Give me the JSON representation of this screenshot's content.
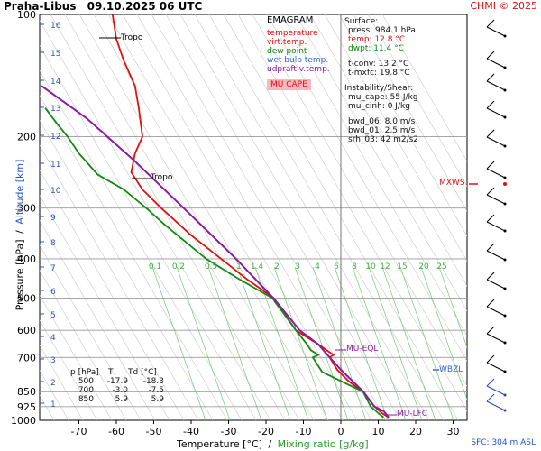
{
  "header": {
    "station": "Praha-Libus",
    "datetime": "09.10.2025 06 UTC",
    "copyright": "CHMI © 2025"
  },
  "legend": {
    "title": "EMAGRAM",
    "items": [
      {
        "label": "temperature",
        "color": "#e01010"
      },
      {
        "label": "virt.temp.",
        "color": "#e01010"
      },
      {
        "label": "dew point",
        "color": "#118811"
      },
      {
        "label": "wet bulb temp.",
        "color": "#3366dd"
      },
      {
        "label": "udpraft v.temp.",
        "color": "#8a1aa0"
      }
    ],
    "mucape_badge": "MU CAPE",
    "mucape_bg": "#f6b8c0"
  },
  "info": {
    "surface_title": "Surface:",
    "press": "press: 984.1 hPa",
    "temp": "temp: 12.8 °C",
    "dwpt": "dwpt: 11.4 °C",
    "tconv": "t-conv: 13.2 °C",
    "tmxfc": "t-mxfc: 19.8 °C",
    "instab_title": "Instability/Shear:",
    "mu_cape": "mu_cape: 55 J/kg",
    "mu_cinh": "mu_cinh: 0 J/kg",
    "bwd_06": "bwd_06: 8.0 m/s",
    "bwd_01": "bwd_01: 2.5 m/s",
    "srh_03": "srh_03: 42 m2/s2"
  },
  "table": {
    "headers": [
      "p [hPa]",
      "T",
      "Td [°C]"
    ],
    "rows": [
      [
        "500",
        "-17.9",
        "-18.3"
      ],
      [
        "700",
        "-3.0",
        "-7.5"
      ],
      [
        "850",
        "5.9",
        "5.9"
      ]
    ]
  },
  "annotations": {
    "tropo_upper": "Tropo",
    "tropo_lower": "Tropo",
    "mu_eql": "MU-EQL",
    "mu_lfc": "MU-LFC",
    "mxws": "MXWS",
    "wbzl": "WBZL",
    "sfc": "SFC: 304 m ASL"
  },
  "axes": {
    "xlabel_temp": "Temperature [°C]",
    "xlabel_sep": "/",
    "xlabel_mix": "Mixing ratio [g/kg]",
    "ylabel_p": "Pressure [hPa]",
    "ylabel_sep": "/",
    "ylabel_alt": "Altitude [km]",
    "x_ticks": [
      -70,
      -60,
      -50,
      -40,
      -30,
      -20,
      -10,
      0,
      10,
      20,
      30
    ],
    "p_ticks": [
      100,
      200,
      300,
      400,
      500,
      600,
      700,
      850,
      925,
      1000
    ],
    "km_ticks": [
      1,
      2,
      3,
      4,
      5,
      6,
      7,
      8,
      9,
      10,
      11,
      12,
      13,
      14,
      15,
      16
    ],
    "mix_labels": [
      "0.1",
      "0.2",
      "0.5",
      "1",
      "1.4",
      "2",
      "3",
      "4",
      "6",
      "8",
      "10",
      "12",
      "15",
      "20",
      "25"
    ]
  },
  "colors": {
    "temperature": "#e01010",
    "dewpoint": "#118811",
    "parcel": "#8a1aa0",
    "wetbulb": "#3366dd",
    "mixing": "#7fd07f",
    "grid": "#999999",
    "alt": "#2255cc"
  },
  "chart_data": {
    "type": "line",
    "title": "EMAGRAM",
    "xlabel": "Temperature [°C]",
    "ylabel": "Pressure [hPa]",
    "xlim": [
      -80,
      34
    ],
    "ylim": [
      1000,
      100
    ],
    "y_scale": "log",
    "grid": true,
    "series": [
      {
        "name": "temperature",
        "points": [
          [
            12.8,
            984
          ],
          [
            11,
            960
          ],
          [
            9,
            925
          ],
          [
            5.9,
            850
          ],
          [
            2,
            800
          ],
          [
            -1,
            750
          ],
          [
            -3,
            700
          ],
          [
            -2,
            690
          ],
          [
            -6,
            650
          ],
          [
            -12,
            600
          ],
          [
            -17.9,
            500
          ],
          [
            -25,
            450
          ],
          [
            -32,
            400
          ],
          [
            -40,
            350
          ],
          [
            -48,
            300
          ],
          [
            -53,
            270
          ],
          [
            -56,
            245
          ],
          [
            -55,
            220
          ],
          [
            -53,
            200
          ],
          [
            -54,
            170
          ],
          [
            -55,
            150
          ],
          [
            -58,
            130
          ],
          [
            -60,
            115
          ],
          [
            -61,
            100
          ]
        ]
      },
      {
        "name": "dew point",
        "points": [
          [
            11.4,
            984
          ],
          [
            10,
            960
          ],
          [
            8,
            925
          ],
          [
            5.9,
            850
          ],
          [
            0,
            800
          ],
          [
            -5,
            760
          ],
          [
            -7.5,
            700
          ],
          [
            -6,
            690
          ],
          [
            -8,
            672
          ],
          [
            -9,
            650
          ],
          [
            -12,
            600
          ],
          [
            -18.3,
            500
          ],
          [
            -27,
            450
          ],
          [
            -36,
            400
          ],
          [
            -47,
            330
          ],
          [
            -52,
            300
          ],
          [
            -58,
            270
          ],
          [
            -65,
            248
          ],
          [
            -70,
            220
          ],
          [
            -73,
            200
          ],
          [
            -76,
            185
          ],
          [
            -79,
            170
          ]
        ]
      },
      {
        "name": "udpraft v.temp.",
        "points": [
          [
            12.8,
            984
          ],
          [
            11.5,
            950
          ],
          [
            9,
            925
          ],
          [
            6,
            850
          ],
          [
            0,
            750
          ],
          [
            -3,
            700
          ],
          [
            -6,
            650
          ],
          [
            -11,
            600
          ],
          [
            -18,
            500
          ],
          [
            -28,
            400
          ],
          [
            -42,
            300
          ],
          [
            -55,
            230
          ],
          [
            -68,
            180
          ],
          [
            -80,
            150
          ]
        ]
      }
    ],
    "levels": [
      {
        "label": "MU-EQL",
        "p": 670
      },
      {
        "label": "MU-LFC",
        "p": 985
      },
      {
        "label": "MXWS",
        "p": 255
      },
      {
        "label": "WBZL",
        "p": 755
      }
    ]
  }
}
